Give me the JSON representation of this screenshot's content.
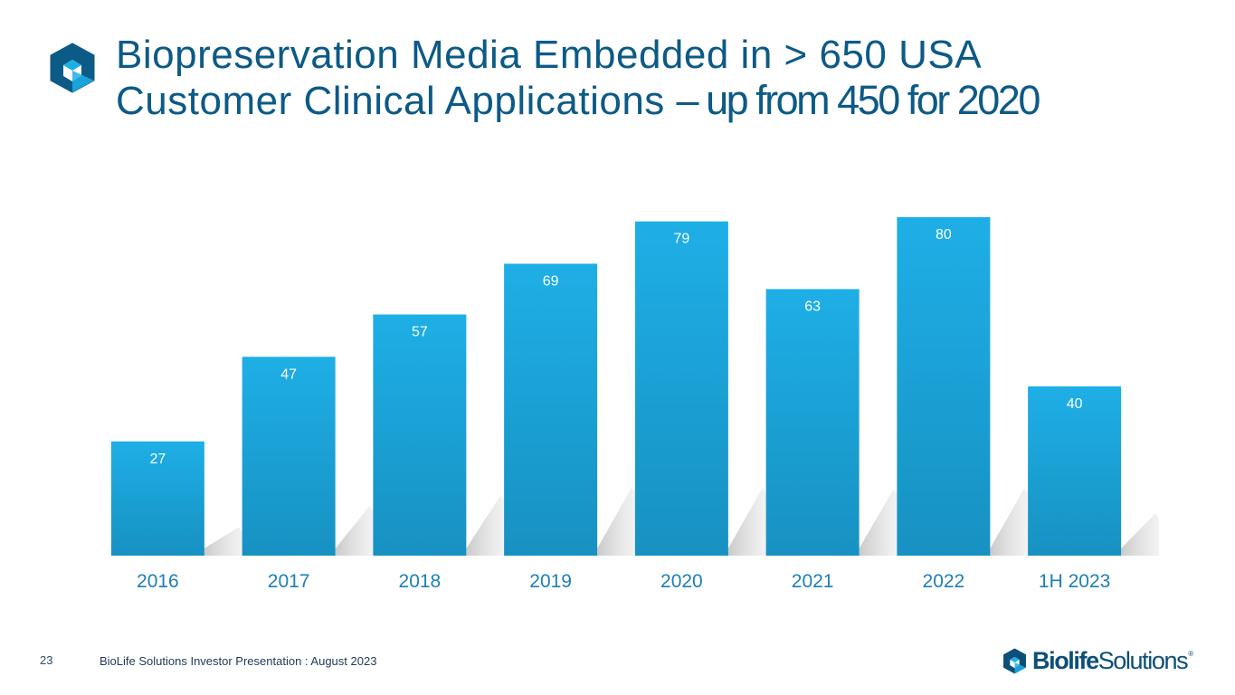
{
  "slide": {
    "title_line1": "Biopreservation Media Embedded in > 650 USA",
    "title_line2": "Customer Clinical Applications ",
    "title_line2_tail": "– up from 450 for 2020",
    "page_number": "23",
    "footer_text": "BioLife Solutions Investor Presentation : August 2023",
    "brand_bold": "Biolife",
    "brand_regular": "Solutions",
    "brand_reg_mark": "®",
    "logo_icon": "cube-logo-icon"
  },
  "chart_data": {
    "type": "bar",
    "title": "",
    "xlabel": "",
    "ylabel": "",
    "categories": [
      "2016",
      "2017",
      "2018",
      "2019",
      "2020",
      "2021",
      "2022",
      "1H 2023"
    ],
    "values": [
      27,
      47,
      57,
      69,
      79,
      63,
      80,
      40
    ],
    "ylim": [
      0,
      80
    ],
    "grid": false,
    "legend": "none",
    "data_labels": "inside-top",
    "colors": {
      "bar_top": "#1eafe6",
      "bar_bottom": "#1791c2",
      "label": "#ffffff",
      "axis_label": "#1d7fb6",
      "shadow": "#c9c9c9"
    }
  }
}
